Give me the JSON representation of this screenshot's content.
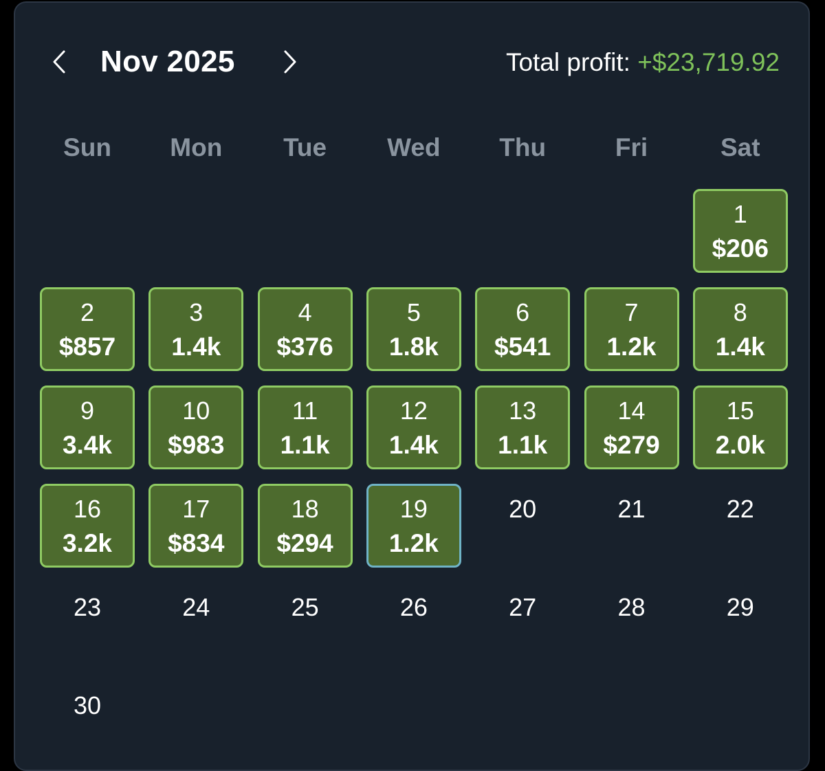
{
  "header": {
    "month_label": "Nov 2025",
    "total_label": "Total profit: ",
    "total_value": "+$23,719.92",
    "prev_icon": "chevron-left-icon",
    "next_icon": "chevron-right-icon"
  },
  "colors": {
    "panel_bg": "#18212c",
    "cell_fill": "#4d6b2e",
    "cell_border": "#8fcb63",
    "today_border": "#6fb3c6",
    "profit_green": "#7fc25a",
    "weekday_gray": "#8a949f"
  },
  "weekdays": [
    "Sun",
    "Mon",
    "Tue",
    "Wed",
    "Thu",
    "Fri",
    "Sat"
  ],
  "days": [
    {
      "day": "1",
      "value": "$206"
    },
    {
      "day": "2",
      "value": "$857"
    },
    {
      "day": "3",
      "value": "1.4k"
    },
    {
      "day": "4",
      "value": "$376"
    },
    {
      "day": "5",
      "value": "1.8k"
    },
    {
      "day": "6",
      "value": "$541"
    },
    {
      "day": "7",
      "value": "1.2k"
    },
    {
      "day": "8",
      "value": "1.4k"
    },
    {
      "day": "9",
      "value": "3.4k"
    },
    {
      "day": "10",
      "value": "$983"
    },
    {
      "day": "11",
      "value": "1.1k"
    },
    {
      "day": "12",
      "value": "1.4k"
    },
    {
      "day": "13",
      "value": "1.1k"
    },
    {
      "day": "14",
      "value": "$279"
    },
    {
      "day": "15",
      "value": "2.0k"
    },
    {
      "day": "16",
      "value": "3.2k"
    },
    {
      "day": "17",
      "value": "$834"
    },
    {
      "day": "18",
      "value": "$294"
    },
    {
      "day": "19",
      "value": "1.2k",
      "today": true
    },
    {
      "day": "20",
      "value": ""
    },
    {
      "day": "21",
      "value": ""
    },
    {
      "day": "22",
      "value": ""
    },
    {
      "day": "23",
      "value": ""
    },
    {
      "day": "24",
      "value": ""
    },
    {
      "day": "25",
      "value": ""
    },
    {
      "day": "26",
      "value": ""
    },
    {
      "day": "27",
      "value": ""
    },
    {
      "day": "28",
      "value": ""
    },
    {
      "day": "29",
      "value": ""
    },
    {
      "day": "30",
      "value": ""
    }
  ]
}
